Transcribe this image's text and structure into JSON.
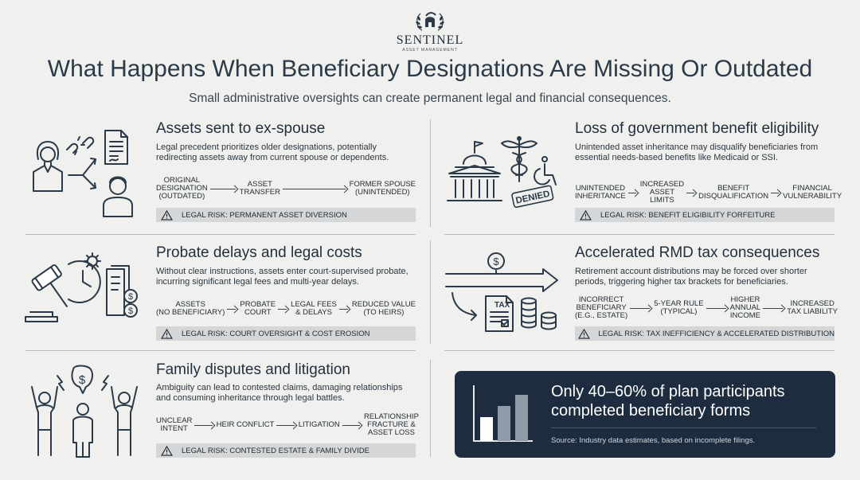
{
  "brand": {
    "name": "SENTINEL",
    "tagline": "ASSET MANAGEMENT"
  },
  "title": "What Happens When Beneficiary Designations Are Missing Or Outdated",
  "subtitle": "Small administrative oversights can create permanent legal and financial consequences.",
  "sections": [
    {
      "title": "Assets sent to ex-spouse",
      "desc": "Legal precedent prioritizes older designations, potentially redirecting assets away from current spouse or dependents.",
      "flow": [
        "Original\nDesignation\n(Outdated)",
        "Asset\nTransfer",
        "Former Spouse\n(Unintended)"
      ],
      "risk": "LEGAL RISK: PERMANENT ASSET DIVERSION"
    },
    {
      "title": "Loss of government benefit eligibility",
      "desc": "Unintended asset inheritance may disqualify beneficiaries from essential needs-based benefits like Medicaid or SSI.",
      "flow": [
        "Unintended\nInheritance",
        "Increased\nAsset Limits",
        "Benefit\nDisqualification",
        "Financial\nVulnerability"
      ],
      "risk": "LEGAL RISK: BENEFIT ELIGIBILITY FORFEITURE",
      "stamp": "DENIED"
    },
    {
      "title": "Probate delays and legal costs",
      "desc": "Without clear instructions, assets enter court-supervised probate, incurring significant legal fees and multi-year delays.",
      "flow": [
        "Assets\n(No Beneficiary)",
        "Probate\nCourt",
        "Legal Fees\n& Delays",
        "Reduced Value\n(To Heirs)"
      ],
      "risk": "LEGAL RISK: COURT OVERSIGHT & COST EROSION"
    },
    {
      "title": "Accelerated RMD tax consequences",
      "desc": "Retirement account distributions may be forced over shorter periods, triggering higher tax brackets for beneficiaries.",
      "flow": [
        "Incorrect\nBeneficiary\n(E.G., Estate)",
        "5-Year Rule\n(Typical)",
        "Higher\nAnnual\nIncome",
        "Increased\nTax Liability"
      ],
      "risk": "LEGAL RISK: TAX INEFFICIENCY & ACCELERATED DISTRIBUTION",
      "tax_label": "TAX"
    },
    {
      "title": "Family disputes and litigation",
      "desc": "Ambiguity can lead to contested claims, damaging relationships and consuming inheritance through legal battles.",
      "flow": [
        "Unclear\nIntent",
        "Heir Conflict",
        "Litigation",
        "Relationship\nFracture &\nAsset Loss"
      ],
      "risk": "LEGAL RISK: CONTESTED ESTATE & FAMILY DIVIDE"
    }
  ],
  "stat": {
    "headline": "Only 40–60% of plan participants completed beneficiary forms",
    "source": "Source: Industry data estimates, based on incomplete filings."
  },
  "colors": {
    "navy": "#1d2d3f",
    "risk_bar": "#d4d6d8",
    "background": "#f0f0ee"
  }
}
